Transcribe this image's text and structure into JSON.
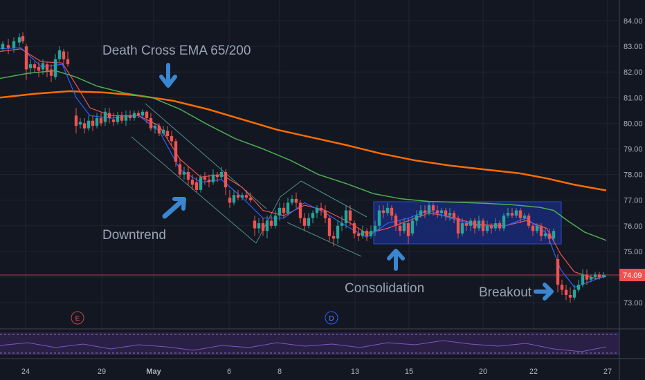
{
  "chart_data": {
    "type": "candlestick",
    "y_ticks": [
      "84.00",
      "83.00",
      "82.00",
      "81.00",
      "80.00",
      "79.00",
      "78.00",
      "77.00",
      "76.00",
      "75.00",
      "74.00",
      "73.00"
    ],
    "x_ticks": [
      "24",
      "29",
      "May",
      "6",
      "8",
      "13",
      "15",
      "20",
      "22",
      "27"
    ],
    "ylim": [
      72.6,
      84.3
    ],
    "last_price": "74.09",
    "grid": true,
    "series": [
      {
        "name": "",
        "color": "#ff6d00",
        "points": [
          [
            0,
            81.0
          ],
          [
            50,
            81.15
          ],
          [
            100,
            81.25
          ],
          [
            150,
            81.2
          ],
          [
            200,
            81.08
          ],
          [
            250,
            80.88
          ],
          [
            300,
            80.55
          ],
          [
            350,
            80.15
          ],
          [
            400,
            79.75
          ],
          [
            450,
            79.45
          ],
          [
            500,
            79.15
          ],
          [
            550,
            78.82
          ],
          [
            600,
            78.55
          ],
          [
            650,
            78.35
          ],
          [
            700,
            78.2
          ],
          [
            750,
            78.05
          ],
          [
            790,
            77.85
          ],
          [
            830,
            77.6
          ],
          [
            876,
            77.38
          ]
        ]
      },
      {
        "name": "",
        "color": "#4caf50",
        "points": [
          [
            0,
            81.75
          ],
          [
            40,
            81.95
          ],
          [
            80,
            82.05
          ],
          [
            110,
            81.8
          ],
          [
            140,
            81.45
          ],
          [
            180,
            81.18
          ],
          [
            220,
            81.0
          ],
          [
            260,
            80.55
          ],
          [
            300,
            79.95
          ],
          [
            340,
            79.4
          ],
          [
            380,
            79.0
          ],
          [
            420,
            78.55
          ],
          [
            460,
            78.0
          ],
          [
            500,
            77.65
          ],
          [
            540,
            77.25
          ],
          [
            580,
            77.05
          ],
          [
            620,
            76.95
          ],
          [
            660,
            76.92
          ],
          [
            700,
            76.88
          ],
          [
            740,
            76.82
          ],
          [
            780,
            76.72
          ],
          [
            800,
            76.6
          ],
          [
            820,
            76.2
          ],
          [
            845,
            75.75
          ],
          [
            876,
            75.43
          ]
        ]
      },
      {
        "name": "",
        "color": "#ef5350",
        "points": [
          [
            0,
            82.8
          ],
          [
            30,
            82.9
          ],
          [
            60,
            82.4
          ],
          [
            90,
            82.35
          ],
          [
            110,
            81.5
          ],
          [
            130,
            80.6
          ],
          [
            160,
            80.3
          ],
          [
            200,
            80.3
          ],
          [
            230,
            79.9
          ],
          [
            260,
            78.6
          ],
          [
            290,
            77.9
          ],
          [
            320,
            78.0
          ],
          [
            350,
            77.5
          ],
          [
            380,
            76.6
          ],
          [
            410,
            76.4
          ],
          [
            440,
            76.8
          ],
          [
            470,
            76.6
          ],
          [
            500,
            76.2
          ],
          [
            530,
            75.7
          ],
          [
            560,
            75.9
          ],
          [
            590,
            76.2
          ],
          [
            620,
            76.5
          ],
          [
            650,
            76.35
          ],
          [
            690,
            76.05
          ],
          [
            730,
            76.0
          ],
          [
            760,
            76.2
          ],
          [
            790,
            75.9
          ],
          [
            810,
            74.9
          ],
          [
            830,
            74.2
          ],
          [
            860,
            73.95
          ],
          [
            876,
            74.02
          ]
        ]
      },
      {
        "name": "",
        "color": "#2962ff",
        "points": [
          [
            0,
            82.9
          ],
          [
            30,
            82.95
          ],
          [
            60,
            82.2
          ],
          [
            90,
            82.3
          ],
          [
            110,
            81.0
          ],
          [
            130,
            80.3
          ],
          [
            160,
            80.2
          ],
          [
            200,
            80.3
          ],
          [
            230,
            79.7
          ],
          [
            260,
            78.2
          ],
          [
            290,
            77.7
          ],
          [
            320,
            77.8
          ],
          [
            350,
            77.1
          ],
          [
            380,
            76.3
          ],
          [
            410,
            76.3
          ],
          [
            440,
            76.9
          ],
          [
            470,
            76.5
          ],
          [
            500,
            76.0
          ],
          [
            530,
            75.55
          ],
          [
            560,
            76.1
          ],
          [
            590,
            76.3
          ],
          [
            620,
            76.6
          ],
          [
            650,
            76.3
          ],
          [
            690,
            76.0
          ],
          [
            730,
            76.0
          ],
          [
            760,
            76.3
          ],
          [
            790,
            75.7
          ],
          [
            810,
            74.3
          ],
          [
            830,
            73.6
          ],
          [
            860,
            73.9
          ],
          [
            876,
            74.05
          ]
        ]
      }
    ],
    "candles": [
      [
        4,
        82.9,
        83.1,
        83.2,
        82.8
      ],
      [
        12,
        83.05,
        82.95,
        83.3,
        82.7
      ],
      [
        20,
        82.95,
        83.2,
        83.35,
        82.75
      ],
      [
        28,
        83.15,
        83.35,
        83.5,
        83.0
      ],
      [
        33,
        83.4,
        83.2,
        83.55,
        83.1
      ],
      [
        38,
        83.0,
        82.1,
        83.1,
        81.7
      ],
      [
        44,
        82.15,
        82.3,
        82.5,
        81.9
      ],
      [
        50,
        82.3,
        82.15,
        82.4,
        82.0
      ],
      [
        56,
        82.2,
        82.05,
        82.4,
        81.8
      ],
      [
        62,
        82.1,
        82.35,
        82.5,
        81.9
      ],
      [
        68,
        82.3,
        82.05,
        82.4,
        81.8
      ],
      [
        74,
        82.1,
        81.85,
        82.3,
        81.6
      ],
      [
        80,
        81.8,
        82.5,
        82.7,
        81.7
      ],
      [
        86,
        82.5,
        82.85,
        83.0,
        82.4
      ],
      [
        92,
        82.8,
        82.5,
        82.9,
        82.3
      ],
      [
        98,
        82.5,
        82.3,
        82.8,
        82.2
      ],
      [
        110,
        80.3,
        79.9,
        80.6,
        79.6
      ],
      [
        116,
        79.95,
        80.05,
        80.2,
        79.8
      ],
      [
        122,
        80.0,
        79.8,
        80.2,
        79.6
      ],
      [
        128,
        79.8,
        80.1,
        80.3,
        79.7
      ],
      [
        134,
        80.1,
        79.9,
        80.3,
        79.7
      ],
      [
        140,
        79.9,
        80.2,
        80.4,
        79.8
      ],
      [
        146,
        80.2,
        80.0,
        80.4,
        79.9
      ],
      [
        152,
        80.05,
        80.45,
        80.6,
        79.9
      ],
      [
        158,
        80.4,
        80.2,
        80.6,
        80.0
      ],
      [
        164,
        80.15,
        80.05,
        80.4,
        79.9
      ],
      [
        170,
        80.05,
        80.3,
        80.45,
        79.95
      ],
      [
        176,
        80.3,
        80.1,
        80.45,
        80.0
      ],
      [
        182,
        80.1,
        80.3,
        80.5,
        79.9
      ],
      [
        188,
        80.3,
        80.2,
        80.5,
        80.1
      ],
      [
        194,
        80.2,
        80.4,
        80.5,
        80.1
      ],
      [
        200,
        80.4,
        80.3,
        80.5,
        80.2
      ],
      [
        206,
        80.3,
        80.45,
        80.55,
        80.2
      ],
      [
        212,
        80.45,
        80.2,
        80.5,
        80.0
      ],
      [
        218,
        80.2,
        79.8,
        80.4,
        79.7
      ],
      [
        224,
        79.8,
        79.9,
        80.0,
        79.6
      ],
      [
        230,
        79.9,
        79.6,
        80.0,
        79.5
      ],
      [
        236,
        79.6,
        79.75,
        79.9,
        79.5
      ],
      [
        242,
        79.7,
        79.5,
        79.9,
        79.4
      ],
      [
        248,
        79.5,
        79.3,
        79.7,
        79.1
      ],
      [
        254,
        79.3,
        78.5,
        79.4,
        78.3
      ],
      [
        260,
        78.4,
        78.0,
        78.6,
        77.9
      ],
      [
        266,
        78.0,
        78.1,
        78.3,
        77.8
      ],
      [
        272,
        78.1,
        77.8,
        78.3,
        77.6
      ],
      [
        278,
        77.8,
        77.6,
        78.0,
        77.4
      ],
      [
        284,
        77.7,
        77.4,
        77.9,
        77.3
      ],
      [
        290,
        77.4,
        77.9,
        78.0,
        77.3
      ],
      [
        296,
        77.9,
        77.8,
        78.1,
        77.6
      ],
      [
        302,
        77.8,
        77.7,
        78.0,
        77.5
      ],
      [
        308,
        77.7,
        78.0,
        78.2,
        77.6
      ],
      [
        314,
        78.0,
        77.9,
        78.1,
        77.7
      ],
      [
        320,
        77.9,
        78.1,
        78.3,
        77.8
      ],
      [
        326,
        78.1,
        77.5,
        78.2,
        77.2
      ],
      [
        332,
        77.1,
        76.9,
        77.4,
        76.7
      ],
      [
        338,
        76.9,
        77.2,
        77.4,
        76.8
      ],
      [
        344,
        77.2,
        77.1,
        77.4,
        77.0
      ],
      [
        350,
        77.1,
        77.2,
        77.3,
        77.0
      ],
      [
        356,
        77.2,
        77.1,
        77.4,
        77.0
      ],
      [
        362,
        77.1,
        77.0,
        77.3,
        76.9
      ],
      [
        368,
        76.2,
        75.9,
        76.4,
        75.6
      ],
      [
        374,
        75.9,
        76.1,
        76.3,
        75.7
      ],
      [
        380,
        76.1,
        75.8,
        76.3,
        75.6
      ],
      [
        386,
        75.8,
        76.2,
        76.4,
        75.5
      ],
      [
        392,
        76.2,
        76.0,
        76.4,
        75.9
      ],
      [
        398,
        76.0,
        76.4,
        76.6,
        75.9
      ],
      [
        404,
        76.4,
        76.7,
        76.9,
        76.2
      ],
      [
        410,
        76.7,
        76.5,
        76.9,
        76.3
      ],
      [
        416,
        76.5,
        76.9,
        77.1,
        76.4
      ],
      [
        422,
        76.9,
        77.05,
        77.2,
        76.8
      ],
      [
        428,
        77.05,
        76.9,
        77.3,
        76.7
      ],
      [
        434,
        76.9,
        76.3,
        77.0,
        76.1
      ],
      [
        440,
        76.3,
        76.0,
        76.5,
        75.8
      ],
      [
        446,
        76.0,
        76.3,
        76.5,
        75.9
      ],
      [
        452,
        76.3,
        76.5,
        76.6,
        76.1
      ],
      [
        458,
        76.5,
        76.7,
        76.8,
        76.3
      ],
      [
        464,
        76.7,
        76.6,
        76.9,
        76.4
      ],
      [
        470,
        76.6,
        76.3,
        76.8,
        76.1
      ],
      [
        476,
        76.3,
        75.6,
        76.4,
        75.4
      ],
      [
        482,
        75.6,
        75.5,
        75.8,
        75.2
      ],
      [
        488,
        75.5,
        76.0,
        76.2,
        75.3
      ],
      [
        494,
        76.0,
        76.1,
        76.4,
        75.8
      ],
      [
        500,
        76.1,
        76.6,
        76.8,
        75.9
      ],
      [
        506,
        76.6,
        76.2,
        76.8,
        76.0
      ],
      [
        512,
        76.1,
        75.7,
        76.2,
        75.5
      ],
      [
        518,
        75.7,
        75.6,
        75.9,
        75.4
      ],
      [
        524,
        75.6,
        75.8,
        76.0,
        75.5
      ],
      [
        530,
        75.8,
        75.6,
        75.9,
        75.4
      ],
      [
        536,
        75.6,
        75.8,
        76.0,
        75.5
      ],
      [
        542,
        75.8,
        76.0,
        76.2,
        75.6
      ],
      [
        548,
        76.0,
        76.6,
        76.8,
        75.8
      ],
      [
        554,
        76.6,
        76.5,
        76.8,
        76.3
      ],
      [
        560,
        76.5,
        76.7,
        76.9,
        76.4
      ],
      [
        566,
        76.7,
        76.4,
        76.8,
        76.2
      ],
      [
        572,
        76.4,
        76.0,
        76.5,
        75.8
      ],
      [
        578,
        76.0,
        75.8,
        76.2,
        75.6
      ],
      [
        584,
        75.8,
        76.1,
        76.3,
        75.7
      ],
      [
        590,
        76.1,
        75.6,
        76.3,
        75.3
      ],
      [
        596,
        75.7,
        76.2,
        76.4,
        75.6
      ],
      [
        602,
        76.2,
        76.4,
        76.6,
        76.0
      ],
      [
        608,
        76.4,
        76.6,
        76.8,
        76.3
      ],
      [
        614,
        76.6,
        76.5,
        76.8,
        76.3
      ],
      [
        620,
        76.5,
        76.8,
        76.95,
        76.4
      ],
      [
        626,
        76.8,
        76.6,
        76.9,
        76.4
      ],
      [
        632,
        76.6,
        76.5,
        76.8,
        76.3
      ],
      [
        638,
        76.5,
        76.6,
        76.7,
        76.3
      ],
      [
        644,
        76.6,
        76.4,
        76.7,
        76.2
      ],
      [
        650,
        76.4,
        76.5,
        76.7,
        76.2
      ],
      [
        656,
        76.5,
        76.3,
        76.6,
        76.1
      ],
      [
        662,
        76.3,
        75.7,
        76.4,
        75.5
      ],
      [
        668,
        75.7,
        76.1,
        76.3,
        75.6
      ],
      [
        674,
        76.1,
        76.0,
        76.2,
        75.8
      ],
      [
        680,
        76.0,
        76.2,
        76.3,
        75.8
      ],
      [
        686,
        76.2,
        75.9,
        76.3,
        75.7
      ],
      [
        692,
        75.9,
        76.2,
        76.4,
        75.8
      ],
      [
        698,
        76.2,
        75.8,
        76.3,
        75.6
      ],
      [
        704,
        75.8,
        76.0,
        76.2,
        75.7
      ],
      [
        710,
        76.0,
        75.9,
        76.1,
        75.7
      ],
      [
        716,
        75.9,
        76.1,
        76.3,
        75.8
      ],
      [
        722,
        76.1,
        75.9,
        76.2,
        75.8
      ],
      [
        728,
        75.9,
        76.4,
        76.5,
        75.8
      ],
      [
        734,
        76.4,
        76.5,
        76.7,
        76.3
      ],
      [
        740,
        76.5,
        76.4,
        76.7,
        76.3
      ],
      [
        746,
        76.4,
        76.6,
        76.7,
        76.3
      ],
      [
        752,
        76.6,
        76.3,
        76.7,
        76.1
      ],
      [
        758,
        76.3,
        76.4,
        76.5,
        76.2
      ],
      [
        764,
        76.4,
        76.0,
        76.5,
        75.9
      ],
      [
        770,
        76.0,
        75.8,
        76.1,
        75.6
      ],
      [
        776,
        75.8,
        76.0,
        76.1,
        75.7
      ],
      [
        782,
        76.0,
        75.6,
        76.1,
        75.4
      ],
      [
        788,
        75.6,
        75.7,
        75.9,
        75.5
      ],
      [
        794,
        75.7,
        75.5,
        75.9,
        75.3
      ],
      [
        800,
        75.5,
        75.8,
        75.9,
        75.4
      ],
      [
        806,
        74.7,
        73.7,
        74.9,
        73.4
      ],
      [
        812,
        73.7,
        73.5,
        73.9,
        73.3
      ],
      [
        818,
        73.5,
        73.3,
        73.7,
        73.1
      ],
      [
        824,
        73.3,
        73.2,
        73.6,
        73.0
      ],
      [
        830,
        73.2,
        73.5,
        73.7,
        73.1
      ],
      [
        836,
        73.5,
        73.7,
        73.9,
        73.4
      ],
      [
        842,
        73.7,
        74.1,
        74.3,
        73.6
      ],
      [
        848,
        74.1,
        73.9,
        74.3,
        73.7
      ],
      [
        854,
        73.9,
        74.0,
        74.1,
        73.8
      ],
      [
        860,
        74.0,
        74.1,
        74.2,
        73.9
      ],
      [
        866,
        74.1,
        74.0,
        74.2,
        73.9
      ],
      [
        872,
        74.0,
        74.09,
        74.2,
        73.95
      ]
    ],
    "annotations": [
      {
        "text": "Death Cross EMA 65/200"
      },
      {
        "text": "Downtrend"
      },
      {
        "text": "Consolidation"
      },
      {
        "text": "Breakout"
      }
    ],
    "event_markers": [
      "E",
      "D"
    ]
  }
}
